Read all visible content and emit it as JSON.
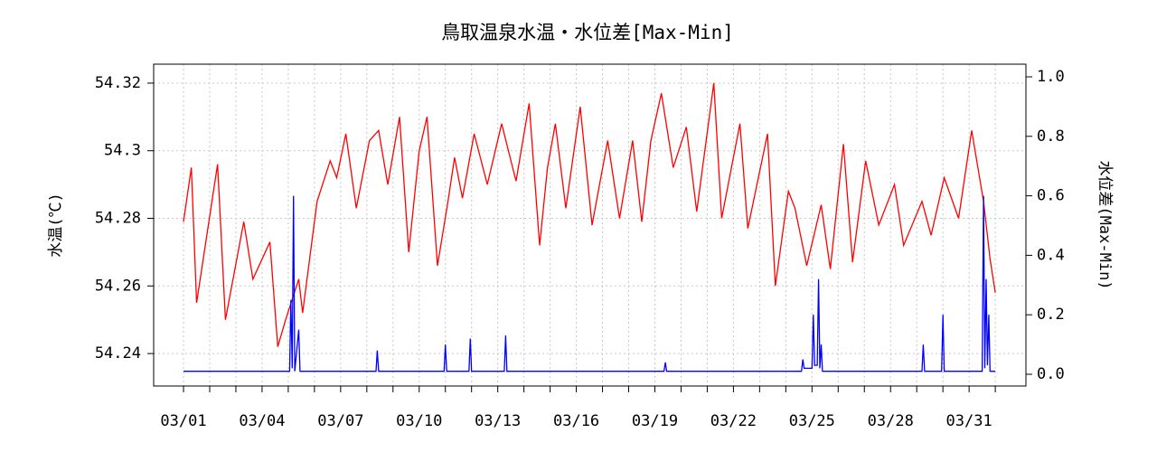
{
  "chart_data": {
    "type": "line",
    "title": "鳥取温泉水温・水位差[Max-Min]",
    "ylabel": "水温(℃)",
    "y2label": "水位差(Max-Min)",
    "xlim": [
      -1.14,
      32.17
    ],
    "xticks": [
      {
        "value": 0,
        "label": "03/01"
      },
      {
        "value": 3,
        "label": "03/04"
      },
      {
        "value": 6,
        "label": "03/07"
      },
      {
        "value": 9,
        "label": "03/10"
      },
      {
        "value": 12,
        "label": "03/13"
      },
      {
        "value": 15,
        "label": "03/16"
      },
      {
        "value": 18,
        "label": "03/19"
      },
      {
        "value": 21,
        "label": "03/22"
      },
      {
        "value": 24,
        "label": "03/25"
      },
      {
        "value": 27,
        "label": "03/28"
      },
      {
        "value": 30,
        "label": "03/31"
      }
    ],
    "xminor_ticks": [
      0,
      1,
      2,
      3,
      4,
      5,
      6,
      7,
      8,
      9,
      10,
      11,
      12,
      13,
      14,
      15,
      16,
      17,
      18,
      19,
      20,
      21,
      22,
      23,
      24,
      25,
      26,
      27,
      28,
      29,
      30,
      31
    ],
    "ylim": [
      54.2304,
      54.3256
    ],
    "yticks": [
      54.24,
      54.26,
      54.28,
      54.3,
      54.32
    ],
    "y2lim": [
      -0.0395,
      1.0426
    ],
    "y2ticks": [
      {
        "value": 0,
        "label": "0.0"
      },
      {
        "value": 0.2,
        "label": "0.2"
      },
      {
        "value": 0.4,
        "label": "0.4"
      },
      {
        "value": 0.6,
        "label": "0.6"
      },
      {
        "value": 0.8,
        "label": "0.8"
      },
      {
        "value": 1,
        "label": "1.0"
      }
    ],
    "grid": true,
    "series": [
      {
        "name": "水温",
        "color": "#ff0000",
        "axis": "y",
        "x": [
          0,
          0.3,
          0.5,
          1.3,
          1.6,
          2.3,
          2.65,
          3.3,
          3.6,
          3.9,
          4.4,
          4.55,
          5.1,
          5.6,
          5.85,
          6.2,
          6.6,
          7.1,
          7.45,
          7.8,
          8.25,
          8.6,
          9.0,
          9.3,
          9.7,
          10.1,
          10.35,
          10.65,
          11.1,
          11.6,
          12.15,
          12.7,
          13.2,
          13.6,
          13.9,
          14.2,
          14.6,
          15.15,
          15.6,
          16.2,
          16.65,
          17.15,
          17.5,
          17.85,
          18.25,
          18.7,
          19.2,
          19.6,
          20.25,
          20.55,
          21.25,
          21.55,
          22.3,
          22.6,
          23.1,
          23.35,
          23.8,
          24.35,
          24.7,
          25.2,
          25.55,
          26.05,
          26.55,
          27.15,
          27.5,
          28.2,
          28.55,
          29.05,
          29.6,
          30.1,
          30.55,
          30.8,
          31.0
        ],
        "values": [
          54.279,
          54.295,
          54.255,
          54.296,
          54.25,
          54.279,
          54.262,
          54.273,
          54.242,
          54.25,
          54.262,
          54.252,
          54.285,
          54.297,
          54.292,
          54.305,
          54.283,
          54.303,
          54.306,
          54.29,
          54.31,
          54.27,
          54.3,
          54.31,
          54.266,
          54.285,
          54.298,
          54.286,
          54.305,
          54.29,
          54.308,
          54.291,
          54.314,
          54.272,
          54.295,
          54.308,
          54.283,
          54.313,
          54.278,
          54.303,
          54.28,
          54.303,
          54.279,
          54.303,
          54.317,
          54.295,
          54.307,
          54.282,
          54.32,
          54.28,
          54.308,
          54.277,
          54.305,
          54.26,
          54.288,
          54.283,
          54.266,
          54.284,
          54.265,
          54.302,
          54.267,
          54.297,
          54.278,
          54.29,
          54.272,
          54.285,
          54.275,
          54.292,
          54.28,
          54.306,
          54.285,
          54.268,
          54.258
        ]
      },
      {
        "name": "水位差",
        "color": "#0000ff",
        "axis": "y2",
        "x": [
          0,
          4.05,
          4.1,
          4.15,
          4.2,
          4.25,
          4.4,
          4.45,
          4.5,
          7.35,
          7.4,
          7.45,
          9.95,
          10.0,
          10.05,
          10.9,
          10.95,
          11.0,
          12.25,
          12.3,
          12.35,
          18.35,
          18.4,
          18.45,
          23.6,
          23.65,
          23.7,
          24.0,
          24.05,
          24.1,
          24.2,
          24.25,
          24.3,
          24.35,
          24.4,
          28.2,
          28.25,
          28.3,
          28.95,
          29.0,
          29.05,
          30.5,
          30.55,
          30.6,
          30.65,
          30.7,
          30.75,
          30.8,
          31.0
        ],
        "values": [
          0.01,
          0.01,
          0.25,
          0.02,
          0.6,
          0.01,
          0.15,
          0.01,
          0.01,
          0.01,
          0.08,
          0.01,
          0.01,
          0.1,
          0.01,
          0.01,
          0.12,
          0.01,
          0.01,
          0.13,
          0.01,
          0.01,
          0.04,
          0.01,
          0.01,
          0.05,
          0.02,
          0.02,
          0.2,
          0.03,
          0.03,
          0.32,
          0.02,
          0.1,
          0.01,
          0.01,
          0.1,
          0.01,
          0.01,
          0.2,
          0.01,
          0.01,
          0.6,
          0.02,
          0.32,
          0.03,
          0.2,
          0.01,
          0.01
        ]
      }
    ]
  }
}
